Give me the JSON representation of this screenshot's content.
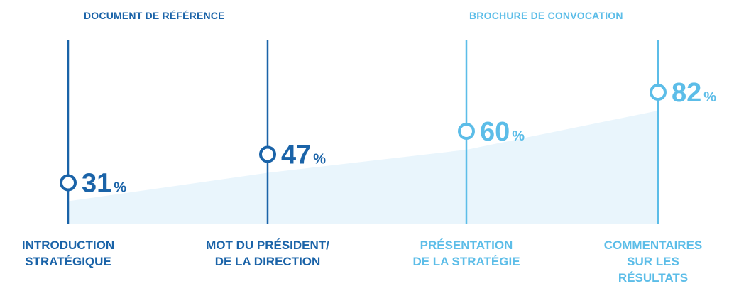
{
  "colors": {
    "dark": "#1a63a8",
    "light": "#5cbde8",
    "area": "#e9f5fc"
  },
  "groups": [
    {
      "label": "DOCUMENT DE RÉFÉRENCE",
      "tone": "dark"
    },
    {
      "label": "BROCHURE DE CONVOCATION",
      "tone": "light"
    }
  ],
  "chart_data": {
    "type": "area",
    "categories": [
      "INTRODUCTION\nSTRATÉGIQUE",
      "MOT DU PRÉSIDENT/\nDE LA DIRECTION",
      "PRÉSENTATION\nDE LA STRATÉGIE",
      "COMMENTAIRES\nSUR LES RÉSULTATS"
    ],
    "values": [
      31,
      47,
      60,
      82
    ],
    "value_labels": [
      "31",
      "47",
      "60",
      "82"
    ],
    "unit": "%",
    "tones": [
      "dark",
      "dark",
      "light",
      "light"
    ],
    "ylim": [
      0,
      100
    ],
    "grid": false
  }
}
